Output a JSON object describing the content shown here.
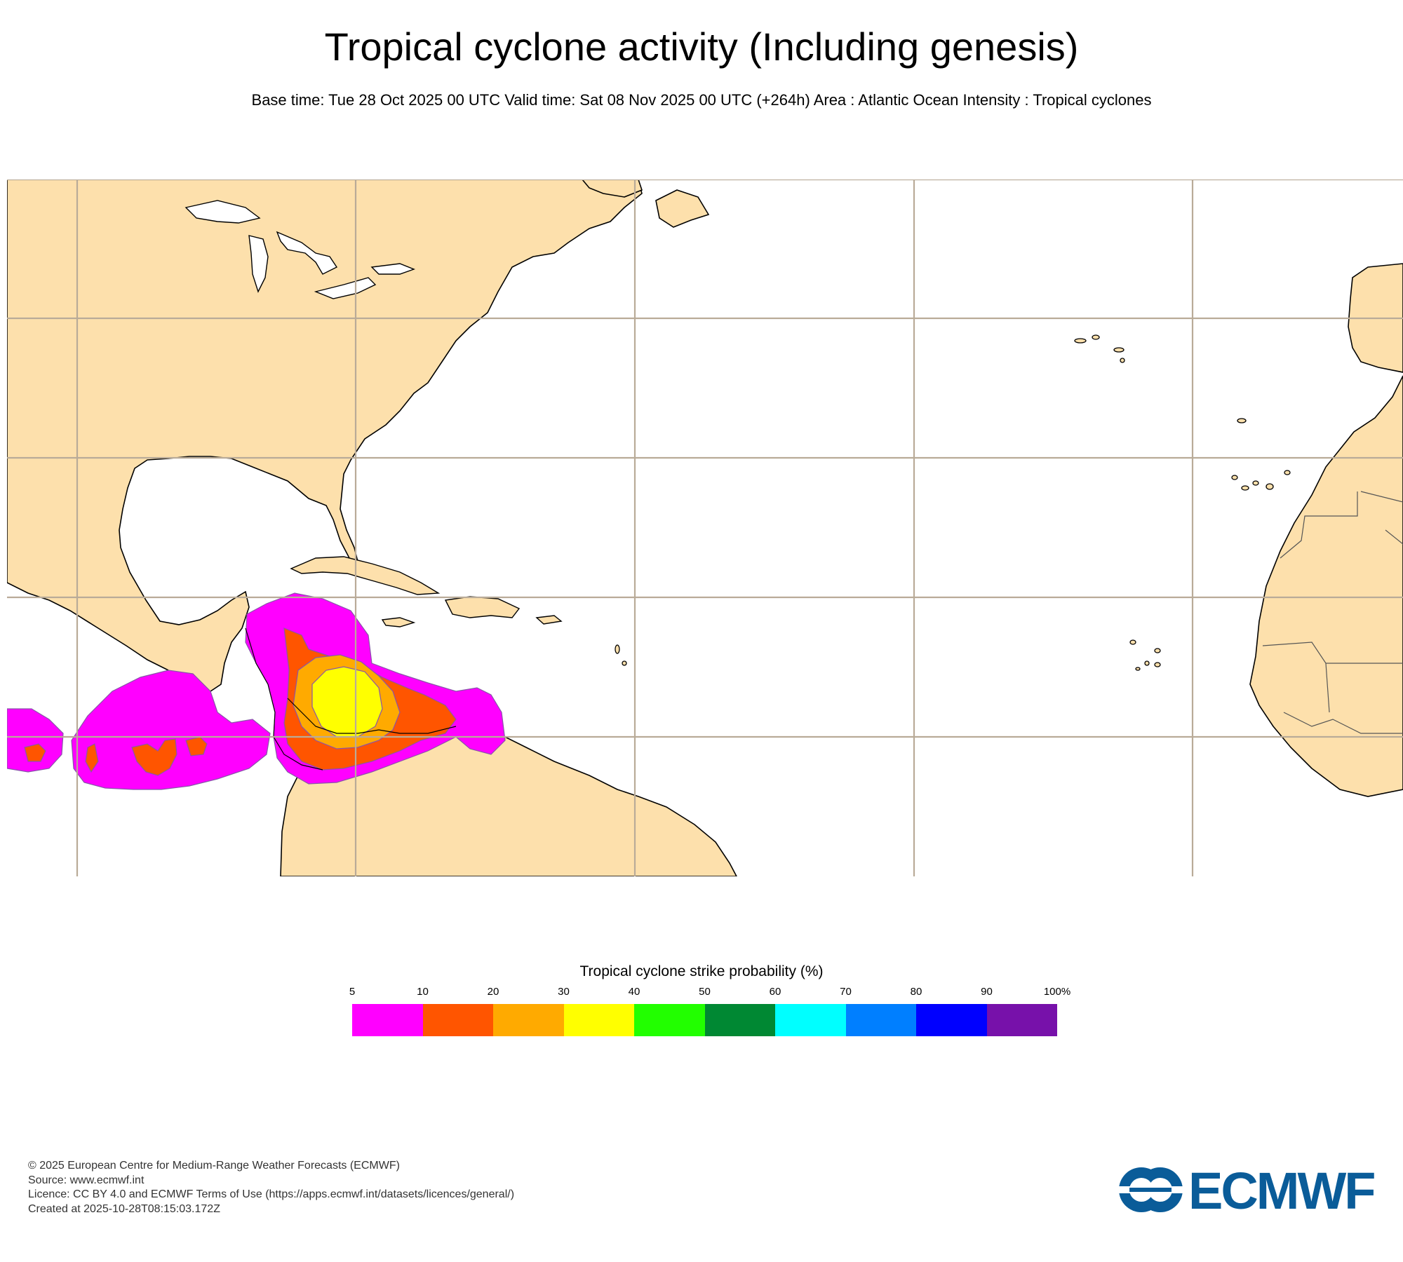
{
  "header": {
    "title": "Tropical cyclone activity (Including genesis)",
    "subtitle": "Base time: Tue 28 Oct 2025 00 UTC Valid time: Sat 08 Nov 2025 00 UTC (+264h) Area : Atlantic Ocean Intensity : Tropical cyclones"
  },
  "map": {
    "land_color": "#fde0ac",
    "ocean_color": "#ffffff",
    "gridline_color": "#b9ab98"
  },
  "legend": {
    "title": "Tropical cyclone strike probability (%)",
    "ticks": [
      "5",
      "10",
      "20",
      "30",
      "40",
      "50",
      "60",
      "70",
      "80",
      "90",
      "100%"
    ],
    "colors": [
      "#ff00ff",
      "#ff5500",
      "#ffaa00",
      "#ffff00",
      "#22ff00",
      "#008833",
      "#00ffff",
      "#007fff",
      "#0000ff",
      "#7711aa"
    ]
  },
  "footer": {
    "line1": "© 2025 European Centre for Medium-Range Weather Forecasts (ECMWF)",
    "line2": "Source: www.ecmwf.int",
    "line3": "Licence: CC BY 4.0 and ECMWF Terms of Use (https://apps.ecmwf.int/datasets/licences/general/)",
    "line4": "Created at 2025-10-28T08:15:03.172Z"
  },
  "logo": {
    "text": "ECMWF",
    "color": "#0a5c99"
  }
}
